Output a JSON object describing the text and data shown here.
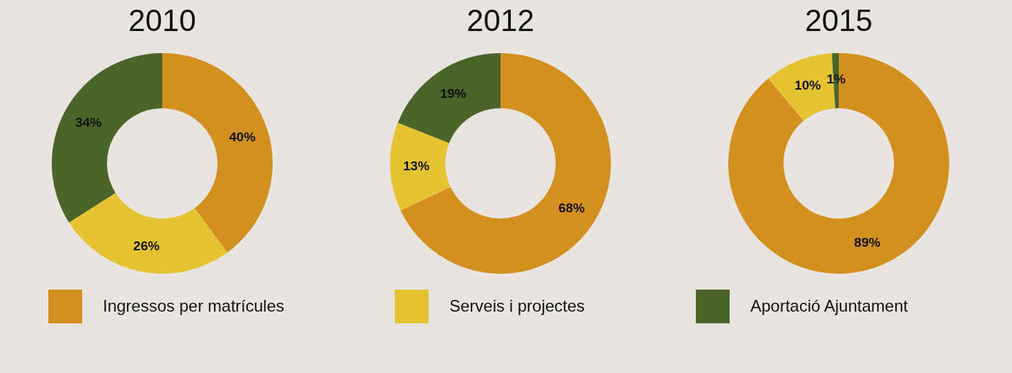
{
  "chart_data": [
    {
      "type": "donut",
      "title": "2010",
      "categories": [
        "Ingressos per matrícules",
        "Serveis i projectes",
        "Aportació Ajuntament"
      ],
      "values": [
        40,
        26,
        34
      ],
      "colors": [
        "#d4901f",
        "#e6c431",
        "#4b642a"
      ],
      "value_labels": [
        "40%",
        "26%",
        "34%"
      ],
      "legend": "bottom"
    },
    {
      "type": "donut",
      "title": "2012",
      "categories": [
        null,
        null,
        null
      ],
      "values": [
        68,
        13,
        19
      ],
      "colors": [
        "#d4901f",
        "#e6c431",
        "#4b642a"
      ],
      "value_labels": [
        "68%",
        "13%",
        "19%"
      ]
    },
    {
      "type": "donut",
      "title": "2015",
      "categories": [
        null,
        null,
        null
      ],
      "values": [
        89,
        10,
        1
      ],
      "colors": [
        "#d4901f",
        "#e6c431",
        "#4b642a"
      ],
      "value_labels": [
        "89%",
        "10%",
        "1%"
      ]
    }
  ]
}
